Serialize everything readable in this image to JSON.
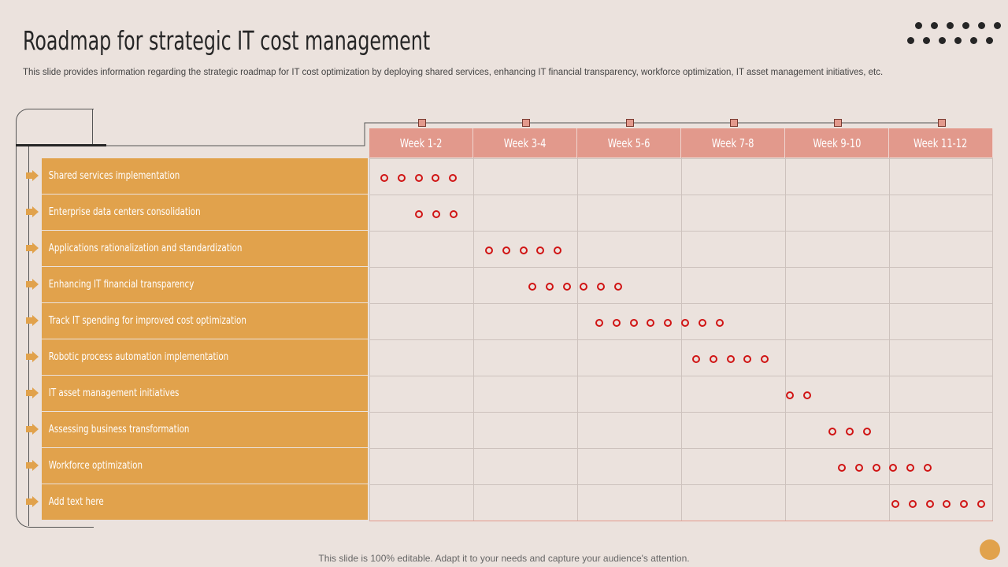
{
  "title": "Roadmap for strategic IT cost management",
  "subtitle": "This slide provides information regarding the strategic roadmap for IT cost optimization by deploying shared services, enhancing IT financial transparency, workforce optimization, IT  asset management initiatives, etc.",
  "footer": "This slide is 100% editable. Adapt it to your needs and capture your audience's attention.",
  "colors": {
    "row_fill": "#e1a24c",
    "header_fill": "#e2998c",
    "ring": "#d01414",
    "background": "#ebe2dd"
  },
  "columns": [
    "Week 1-2",
    "Week 3-4",
    "Week 5-6",
    "Week 7-8",
    "Week 9-10",
    "Week 11-12"
  ],
  "rows": [
    {
      "label": "Shared services implementation",
      "dots": 5
    },
    {
      "label": "Enterprise  data  centers  consolidation",
      "dots": 3
    },
    {
      "label": "Applications  rationalization  and  standardization",
      "dots": 5
    },
    {
      "label": "Enhancing  IT financial  transparency",
      "dots": 6
    },
    {
      "label": "Track IT spending  for  improved  cost  optimization",
      "dots": 8
    },
    {
      "label": "Robotic  process  automation  implementation",
      "dots": 5
    },
    {
      "label": "IT asset management  initiatives",
      "dots": 2
    },
    {
      "label": "Assessing  business  transformation",
      "dots": 3
    },
    {
      "label": "Workforce  optimization",
      "dots": 6
    },
    {
      "label": "Add text here",
      "dots": 6
    }
  ]
}
